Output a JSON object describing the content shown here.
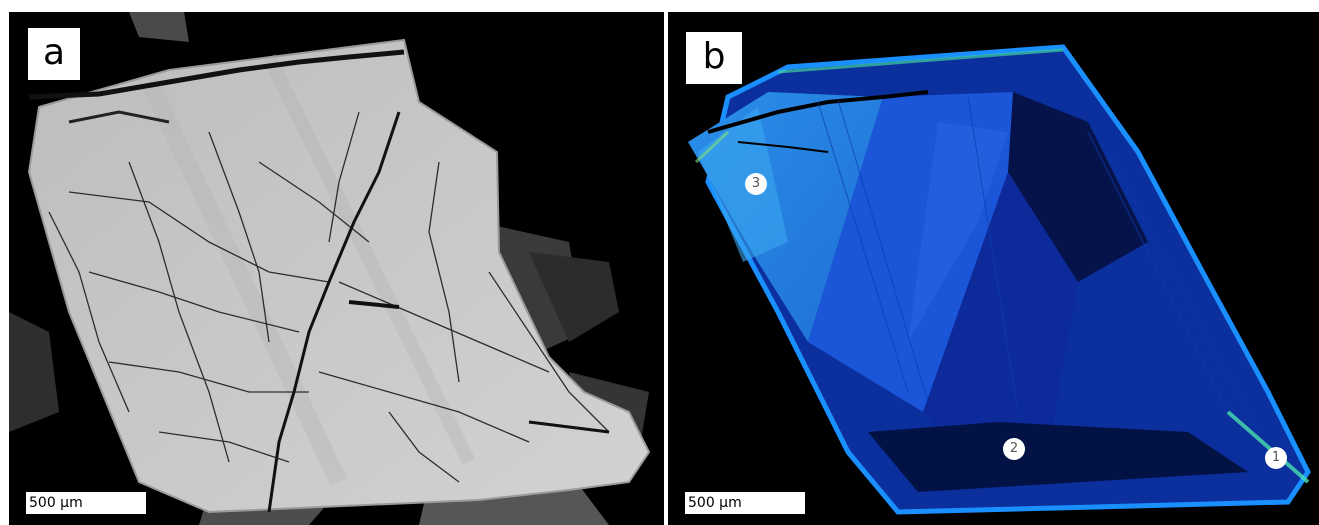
{
  "panel_a": {
    "label": "a",
    "scale_bar": "500 µm"
  },
  "panel_b": {
    "label": "b",
    "scale_bar": "500 µm",
    "markers": [
      "1",
      "2",
      "3"
    ]
  }
}
